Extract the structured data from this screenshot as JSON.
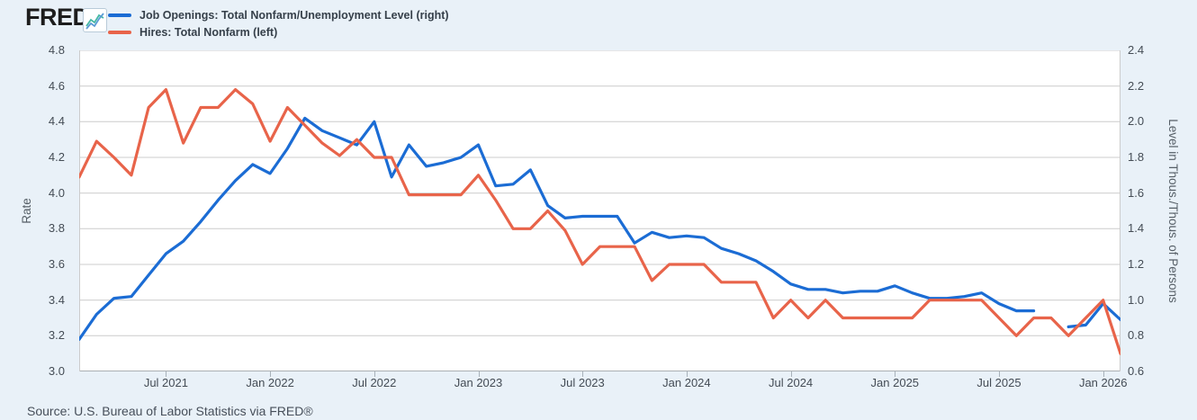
{
  "header": {
    "logo_text": "FRED",
    "logo_suffix": ".",
    "legend": [
      {
        "label": "Job Openings: Total Nonfarm/Unemployment Level (right)",
        "color": "#1b6cd4"
      },
      {
        "label": "Hires: Total Nonfarm (left)",
        "color": "#e8644a"
      }
    ]
  },
  "source_line": "Source: U.S. Bureau of Labor Statistics via FRED®",
  "colors": {
    "background": "#e9f1f8",
    "plot_background": "#ffffff",
    "gridline": "#cccccc",
    "axis_line": "#8f969c",
    "tick_text": "#444c55",
    "legend_text": "#36404a",
    "source_text": "#474f5a",
    "logo_text": "#1d1d1d",
    "blue_series": "#1b6cd4",
    "orange_series": "#e8644a"
  },
  "chart_data": {
    "type": "line",
    "grid": "horizontal",
    "left_axis": {
      "label": "Rate",
      "min": 3.0,
      "max": 4.8,
      "tick_step": 0.2
    },
    "right_axis": {
      "label": "Level in Thous./Thous. of Persons",
      "min": 0.6,
      "max": 2.4,
      "tick_step": 0.2
    },
    "left_ticks": [
      "4.8",
      "4.6",
      "4.4",
      "4.2",
      "4.0",
      "3.8",
      "3.6",
      "3.4",
      "3.2",
      "3.0"
    ],
    "right_ticks": [
      "2.4",
      "2.2",
      "2.0",
      "1.8",
      "1.6",
      "1.4",
      "1.2",
      "1.0",
      "0.8",
      "0.6"
    ],
    "x_ticks": [
      {
        "index": 5,
        "label": "Jul 2021"
      },
      {
        "index": 11,
        "label": "Jan 2022"
      },
      {
        "index": 17,
        "label": "Jul 2022"
      },
      {
        "index": 23,
        "label": "Jan 2023"
      },
      {
        "index": 29,
        "label": "Jul 2023"
      },
      {
        "index": 35,
        "label": "Jan 2024"
      },
      {
        "index": 41,
        "label": "Jul 2024"
      },
      {
        "index": 47,
        "label": "Jan 2025"
      },
      {
        "index": 53,
        "label": "Jul 2025"
      },
      {
        "index": 59,
        "label": "Jan 2026"
      }
    ],
    "months": [
      "2021-02",
      "2021-03",
      "2021-04",
      "2021-05",
      "2021-06",
      "2021-07",
      "2021-08",
      "2021-09",
      "2021-10",
      "2021-11",
      "2021-12",
      "2022-01",
      "2022-02",
      "2022-03",
      "2022-04",
      "2022-05",
      "2022-06",
      "2022-07",
      "2022-08",
      "2022-09",
      "2022-10",
      "2022-11",
      "2022-12",
      "2023-01",
      "2023-02",
      "2023-03",
      "2023-04",
      "2023-05",
      "2023-06",
      "2023-07",
      "2023-08",
      "2023-09",
      "2023-10",
      "2023-11",
      "2023-12",
      "2024-01",
      "2024-02",
      "2024-03",
      "2024-04",
      "2024-05",
      "2024-06",
      "2024-07",
      "2024-08",
      "2024-09",
      "2024-10",
      "2024-11",
      "2024-12",
      "2025-01",
      "2025-02",
      "2025-03",
      "2025-04",
      "2025-05",
      "2025-06",
      "2025-07",
      "2025-08",
      "2025-09",
      "2025-10",
      "2025-11",
      "2025-12",
      "2026-01",
      "2026-02"
    ],
    "series": [
      {
        "name": "Job Openings: Total Nonfarm/Unemployment Level",
        "axis": "right",
        "color": "#1b6cd4",
        "values": [
          0.78,
          0.92,
          1.01,
          1.02,
          1.14,
          1.26,
          1.33,
          1.44,
          1.56,
          1.67,
          1.76,
          1.71,
          1.85,
          2.02,
          1.95,
          1.91,
          1.87,
          2.0,
          1.69,
          1.87,
          1.75,
          1.77,
          1.8,
          1.87,
          1.64,
          1.65,
          1.73,
          1.53,
          1.46,
          1.47,
          1.47,
          1.47,
          1.32,
          1.38,
          1.35,
          1.36,
          1.35,
          1.29,
          1.26,
          1.22,
          1.16,
          1.09,
          1.06,
          1.06,
          1.04,
          1.05,
          1.05,
          1.08,
          1.04,
          1.01,
          1.01,
          1.02,
          1.04,
          0.98,
          0.94,
          0.94,
          null,
          0.85,
          0.86,
          0.98,
          0.89
        ]
      },
      {
        "name": "Hires: Total Nonfarm",
        "axis": "left",
        "color": "#e8644a",
        "values": [
          4.09,
          4.29,
          4.2,
          4.1,
          4.48,
          4.58,
          4.28,
          4.48,
          4.48,
          4.58,
          4.5,
          4.29,
          4.48,
          4.38,
          4.28,
          4.21,
          4.3,
          4.2,
          4.2,
          3.99,
          3.99,
          3.99,
          3.99,
          4.1,
          3.96,
          3.8,
          3.8,
          3.9,
          3.79,
          3.6,
          3.7,
          3.7,
          3.7,
          3.51,
          3.6,
          3.6,
          3.6,
          3.5,
          3.5,
          3.5,
          3.3,
          3.4,
          3.3,
          3.4,
          3.3,
          3.3,
          3.3,
          3.3,
          3.3,
          3.4,
          3.4,
          3.4,
          3.4,
          3.3,
          3.2,
          3.3,
          3.3,
          3.2,
          3.3,
          3.4,
          3.1
        ]
      }
    ]
  }
}
